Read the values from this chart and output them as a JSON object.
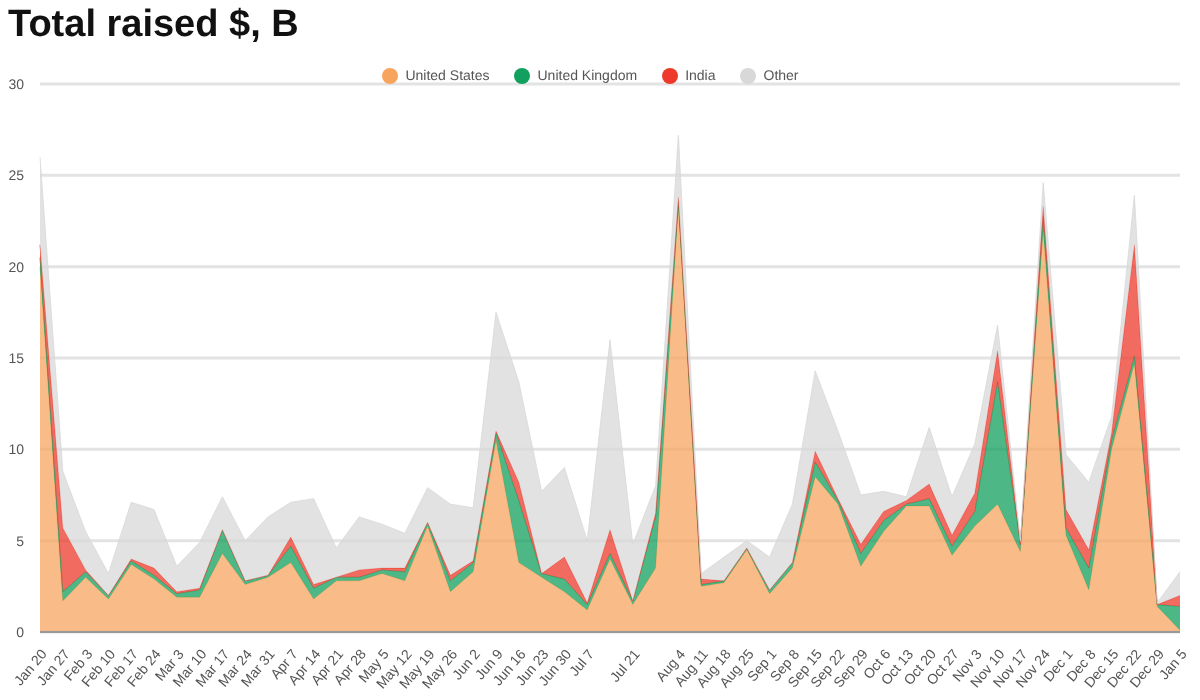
{
  "chart_data": {
    "type": "area",
    "title": "Total raised $, B",
    "stacked": true,
    "grid": "y",
    "legend": "top",
    "categories": [
      "Jan 20",
      "Jan 27",
      "Feb 3",
      "Feb 10",
      "Feb 17",
      "Feb 24",
      "Mar 3",
      "Mar 10",
      "Mar 17",
      "Mar 24",
      "Mar 31",
      "Apr 7",
      "Apr 14",
      "Apr 21",
      "Apr 28",
      "May 5",
      "May 12",
      "May 19",
      "May 26",
      "Jun 2",
      "Jun 9",
      "Jun 16",
      "Jun 23",
      "Jun 30",
      "Jul 7",
      null,
      "Jul 21",
      null,
      "Aug 4",
      "Aug 11",
      "Aug 18",
      "Aug 25",
      "Sep 1",
      "Sep 8",
      "Sep 15",
      "Sep 22",
      "Sep 29",
      "Oct 6",
      "Oct 13",
      "Oct 20",
      "Oct 27",
      "Nov 3",
      "Nov 10",
      "Nov 17",
      "Nov 24",
      "Dec 1",
      "Dec 8",
      "Dec 15",
      "Dec 22",
      "Dec 29",
      "Jan 5"
    ],
    "ylim": [
      0,
      30
    ],
    "yticks": [
      0,
      5,
      10,
      15,
      20,
      25,
      30
    ],
    "series": [
      {
        "name": "United States",
        "color": "#f7a45f",
        "values": [
          20,
          1.7,
          3,
          1.8,
          3.7,
          2.9,
          1.9,
          1.9,
          4.3,
          2.6,
          3.0,
          3.8,
          1.8,
          2.8,
          2.8,
          3.2,
          2.8,
          5.8,
          2.2,
          3.3,
          10.5,
          3.8,
          3.0,
          2.2,
          1.2,
          4.0,
          1.5,
          3.5,
          23.3,
          2.5,
          2.7,
          4.5,
          2.1,
          3.5,
          8.5,
          7.0,
          3.6,
          5.5,
          6.9,
          6.9,
          4.2,
          5.8,
          7.0,
          4.4,
          22.0,
          5.3,
          2.3,
          10.0,
          14.7,
          1.4,
          0.1
        ]
      },
      {
        "name": "United Kingdom",
        "color": "#12a05e",
        "values": [
          0.5,
          0.5,
          0.3,
          0.2,
          0.2,
          0.2,
          0.2,
          0.4,
          1.3,
          0.2,
          0.1,
          0.9,
          0.6,
          0.2,
          0.2,
          0.2,
          0.5,
          0.2,
          0.6,
          0.5,
          0.4,
          3.4,
          0.2,
          0.7,
          0.3,
          0.3,
          0.2,
          2.8,
          0.3,
          0.1,
          0.1,
          0.1,
          0.2,
          0.3,
          0.8,
          0.2,
          0.7,
          0.6,
          0.1,
          0.4,
          0.5,
          0.8,
          6.7,
          0.4,
          0.7,
          0.4,
          1.2,
          0.5,
          0.4,
          0.1,
          1.3
        ]
      },
      {
        "name": "India",
        "color": "#ee3a2c",
        "values": [
          0.7,
          3.5,
          0.1,
          0,
          0.1,
          0.4,
          0.1,
          0.1,
          0,
          0,
          0,
          0.5,
          0.2,
          0,
          0.4,
          0.1,
          0.2,
          0,
          0.3,
          0.1,
          0.1,
          1.0,
          0,
          1.2,
          0.1,
          1.3,
          0,
          0.2,
          0.2,
          0.3,
          0,
          0,
          0,
          0,
          0.6,
          0.1,
          0.5,
          0.5,
          0.2,
          0.8,
          0.6,
          1.0,
          1.7,
          0,
          0.6,
          1.0,
          1.0,
          0.4,
          6.1,
          0,
          0.6
        ]
      },
      {
        "name": "Other",
        "color": "#d8d8d8",
        "values": [
          4.8,
          3.1,
          2.1,
          1.2,
          3.1,
          3.2,
          1.4,
          2.5,
          1.8,
          2.2,
          3.2,
          1.9,
          4.7,
          1.6,
          2.9,
          2.4,
          1.9,
          1.9,
          3.9,
          2.9,
          6.5,
          5.5,
          4.5,
          4.9,
          3.4,
          10.4,
          3.1,
          1.5,
          3.4,
          0.3,
          1.3,
          0.4,
          1.8,
          3.2,
          4.4,
          3.7,
          2.7,
          1.1,
          0.2,
          3.1,
          2.1,
          2.7,
          1.4,
          0.2,
          1.3,
          3.0,
          3.7,
          0.9,
          2.7,
          0.1,
          1.3
        ]
      }
    ]
  }
}
